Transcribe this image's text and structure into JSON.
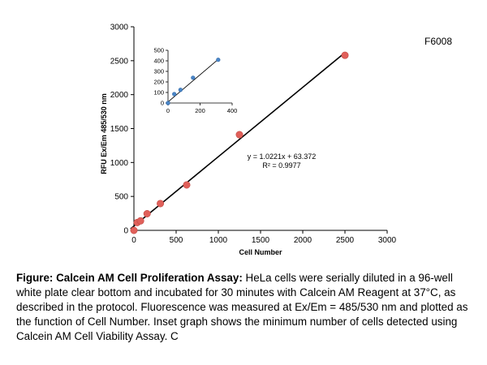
{
  "catalog_label": "F6008",
  "caption": {
    "bold": "Figure: Calcein AM Cell Proliferation Assay:",
    "text": " HeLa cells were serially diluted in a 96-well white plate clear bottom and incubated for 30 minutes with Calcein AM Reagent at 37°C, as described in the protocol. Fluorescence was measured at Ex/Em = 485/530 nm and plotted as the function of Cell Number. Inset graph shows the minimum number of cells detected using Calcein AM Cell Viability Assay. C"
  },
  "chart_data": [
    {
      "type": "scatter",
      "title": "",
      "xlabel": "Cell Number",
      "ylabel": "RFU Ex/Em 485/530 nm",
      "xlim": [
        0,
        3000
      ],
      "ylim": [
        0,
        3000
      ],
      "xticks": [
        "0",
        "500",
        "1000",
        "1500",
        "2000",
        "2500",
        "3000"
      ],
      "yticks": [
        "0",
        "500",
        "1000",
        "1500",
        "2000",
        "2500",
        "3000"
      ],
      "grid": false,
      "legend": "none",
      "marker_color": "#e0605a",
      "points": [
        {
          "x": 0,
          "y": 0
        },
        {
          "x": 39,
          "y": 115
        },
        {
          "x": 78,
          "y": 140
        },
        {
          "x": 156,
          "y": 245
        },
        {
          "x": 313,
          "y": 395
        },
        {
          "x": 625,
          "y": 670
        },
        {
          "x": 1250,
          "y": 1410
        },
        {
          "x": 2500,
          "y": 2580
        }
      ],
      "trendline": {
        "slope": 1.0221,
        "intercept": 63.372,
        "x_range": [
          0,
          2500
        ],
        "equation": "y = 1.0221x + 63.372",
        "r_squared": "R² = 0.9977"
      }
    },
    {
      "type": "scatter",
      "title": "",
      "xlabel": "",
      "ylabel": "",
      "xlim": [
        0,
        400
      ],
      "ylim": [
        0,
        500
      ],
      "xticks": [
        "0",
        "200",
        "400"
      ],
      "yticks": [
        "0",
        "100",
        "200",
        "300",
        "400",
        "500"
      ],
      "grid": false,
      "legend": "none",
      "marker_color": "#4a86c8",
      "points": [
        {
          "x": 0,
          "y": 0
        },
        {
          "x": 39,
          "y": 85
        },
        {
          "x": 78,
          "y": 125
        },
        {
          "x": 156,
          "y": 240
        },
        {
          "x": 313,
          "y": 410
        }
      ],
      "trendline": {
        "slope": 1.29,
        "intercept": 10,
        "x_range": [
          0,
          313
        ]
      }
    }
  ]
}
